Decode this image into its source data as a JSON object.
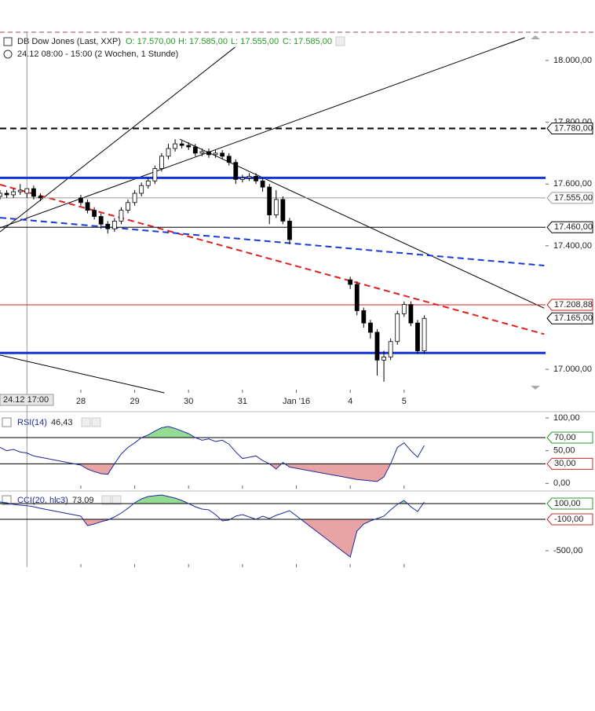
{
  "chart_data": [
    {
      "type": "candlestick",
      "title": "DB Dow Jones (Last, XXP)",
      "ohlc_labels": [
        "O: 17.570,00",
        "H: 17.585,00",
        "L: 17.555,00",
        "C: 17.585,00"
      ],
      "subtitle": "24.12 08:00 - 15:00 (2 Wochen, 1 Stunde)",
      "x": [
        0,
        1,
        2,
        3,
        4,
        5,
        6,
        12,
        13,
        14,
        15,
        16,
        17,
        18,
        19,
        20,
        21,
        22,
        23,
        24,
        25,
        26,
        27,
        28,
        29,
        30,
        31,
        32,
        33,
        34,
        35,
        36,
        37,
        38,
        39,
        40,
        41,
        42,
        43,
        52,
        53,
        54,
        55,
        56,
        57,
        58,
        59,
        60,
        61,
        62,
        63
      ],
      "open": [
        17560,
        17570,
        17565,
        17575,
        17570,
        17585,
        17560,
        17555,
        17540,
        17515,
        17495,
        17470,
        17455,
        17480,
        17515,
        17540,
        17570,
        17595,
        17610,
        17650,
        17690,
        17715,
        17730,
        17725,
        17720,
        17700,
        17705,
        17695,
        17700,
        17690,
        17670,
        17615,
        17620,
        17625,
        17610,
        17590,
        17500,
        17550,
        17480,
        17290,
        17275,
        17190,
        17150,
        17120,
        17030,
        17040,
        17090,
        17180,
        17210,
        17150,
        17060
      ],
      "high": [
        17580,
        17580,
        17585,
        17600,
        17585,
        17595,
        17570,
        17565,
        17550,
        17525,
        17505,
        17480,
        17490,
        17525,
        17550,
        17580,
        17605,
        17620,
        17660,
        17700,
        17730,
        17745,
        17740,
        17735,
        17730,
        17715,
        17715,
        17710,
        17710,
        17700,
        17680,
        17630,
        17635,
        17635,
        17620,
        17600,
        17580,
        17560,
        17490,
        17300,
        17285,
        17200,
        17160,
        17130,
        17060,
        17100,
        17190,
        17220,
        17220,
        17160,
        17175
      ],
      "low": [
        17550,
        17555,
        17555,
        17565,
        17555,
        17550,
        17545,
        17530,
        17505,
        17485,
        17455,
        17440,
        17445,
        17470,
        17505,
        17530,
        17560,
        17585,
        17600,
        17640,
        17680,
        17705,
        17715,
        17710,
        17690,
        17690,
        17685,
        17685,
        17680,
        17660,
        17600,
        17605,
        17610,
        17600,
        17575,
        17470,
        17490,
        17470,
        17405,
        17260,
        17175,
        17135,
        17100,
        16980,
        16960,
        17030,
        17080,
        17170,
        17140,
        17050,
        17050
      ],
      "close": [
        17570,
        17565,
        17575,
        17580,
        17585,
        17560,
        17555,
        17540,
        17515,
        17495,
        17470,
        17455,
        17480,
        17515,
        17540,
        17570,
        17595,
        17610,
        17650,
        17690,
        17715,
        17730,
        17725,
        17720,
        17700,
        17705,
        17695,
        17700,
        17690,
        17670,
        17615,
        17620,
        17625,
        17610,
        17590,
        17500,
        17550,
        17480,
        17420,
        17275,
        17190,
        17150,
        17120,
        17030,
        17040,
        17090,
        17180,
        17210,
        17150,
        17060,
        17165
      ],
      "up_color": "#ffffff",
      "down_color": "#000000",
      "xlim": [
        0,
        81
      ],
      "ylim": [
        16924,
        18094
      ],
      "xticks": [
        {
          "value": 12,
          "label": "28"
        },
        {
          "value": 20,
          "label": "29"
        },
        {
          "value": 28,
          "label": "30"
        },
        {
          "value": 36,
          "label": "31"
        },
        {
          "value": 44,
          "label": "Jan '16"
        },
        {
          "value": 52,
          "label": "4"
        },
        {
          "value": 60,
          "label": "5"
        }
      ],
      "yticks": [
        {
          "value": 18000,
          "label": "18.000,00"
        },
        {
          "value": 17800,
          "label": "17.800,00"
        },
        {
          "value": 17600,
          "label": "17.600,00"
        },
        {
          "value": 17400,
          "label": "17.400,00"
        },
        {
          "value": 17000,
          "label": "17.000,00"
        }
      ],
      "crosshair": {
        "x": 4,
        "label": "24.12 17:00"
      },
      "levels": [
        {
          "value": 17620,
          "color": "#1434d8",
          "style": "solid",
          "width": 3
        },
        {
          "value": 17053,
          "color": "#1434d8",
          "style": "solid",
          "width": 3
        },
        {
          "value": 17780,
          "label": "17.780,00",
          "color": "#000000",
          "style": "dashed",
          "width": 2
        },
        {
          "value": 17555,
          "label": "17.555,00",
          "color": "#999999",
          "style": "solid",
          "width": 1
        },
        {
          "value": 17460,
          "label": "17.460,00",
          "color": "#000000",
          "style": "solid",
          "width": 1
        },
        {
          "value": 17208.88,
          "label": "17.208,88",
          "color": "#d02020",
          "style": "solid",
          "width": 1
        },
        {
          "value": 17165,
          "label": "17.165,00",
          "color": "#000000",
          "style": "none",
          "width": 1
        }
      ],
      "trendlines": [
        {
          "x": [
            0,
            34.9
          ],
          "y": [
            17445,
            18043
          ],
          "color": "#000000",
          "style": "solid",
          "width": 1
        },
        {
          "x": [
            0,
            77.9
          ],
          "y": [
            17458,
            18074
          ],
          "color": "#000000",
          "style": "solid",
          "width": 1
        },
        {
          "x": [
            26.7,
            80.8
          ],
          "y": [
            17745,
            17198
          ],
          "color": "#000000",
          "style": "solid",
          "width": 1
        },
        {
          "x": [
            0,
            24.4
          ],
          "y": [
            17046,
            16924
          ],
          "color": "#000000",
          "style": "solid",
          "width": 1
        },
        {
          "x": [
            0,
            80.8
          ],
          "y": [
            17598,
            17114
          ],
          "color": "#e02020",
          "style": "dashed",
          "width": 2
        },
        {
          "x": [
            0,
            80.8
          ],
          "y": [
            17491,
            17336
          ],
          "color": "#1a3ad8",
          "style": "dashed",
          "width": 2
        }
      ]
    },
    {
      "type": "line",
      "title": "RSI(14)",
      "current_label": "46,43",
      "color": "#1c2a9c",
      "values": [
        55,
        50,
        52,
        48,
        46.43,
        42,
        40,
        28,
        22,
        18,
        15,
        14,
        30,
        45,
        55,
        62,
        70,
        74,
        80,
        85,
        87,
        84,
        80,
        76,
        70,
        66,
        68,
        64,
        66,
        60,
        48,
        38,
        40,
        42,
        35,
        30,
        22,
        32,
        25,
        8,
        6,
        5,
        4,
        3,
        10,
        30,
        55,
        62,
        50,
        40,
        58
      ],
      "ylim": [
        -8,
        106
      ],
      "yticks": [
        {
          "value": 100,
          "label": "100,00"
        },
        {
          "value": 50,
          "label": "50,00"
        },
        {
          "value": 0,
          "label": "0,00"
        }
      ],
      "levels": [
        {
          "value": 70,
          "label": "70,00",
          "color": "#2a9a2a",
          "fill": "#94dc94"
        },
        {
          "value": 30,
          "label": "30,00",
          "color": "#cc2a2a",
          "fill": "#e8a4a4"
        }
      ]
    },
    {
      "type": "line",
      "title": "CCI(20, hlc3)",
      "current_label": "73,09",
      "color": "#1c2a9c",
      "values": [
        120,
        110,
        90,
        80,
        73.09,
        60,
        40,
        -60,
        -180,
        -160,
        -130,
        -110,
        -70,
        -20,
        40,
        110,
        160,
        190,
        200,
        210,
        190,
        170,
        140,
        100,
        60,
        30,
        20,
        -40,
        -120,
        -110,
        -60,
        -40,
        -70,
        -100,
        -60,
        -90,
        -50,
        -20,
        10,
        -580,
        -250,
        -160,
        -120,
        -90,
        -60,
        20,
        90,
        140,
        60,
        0,
        120
      ],
      "ylim": [
        -710,
        240
      ],
      "yticks": [
        {
          "value": -500,
          "label": "-500,00"
        }
      ],
      "levels": [
        {
          "value": 100,
          "label": "100,00",
          "color": "#2a9a2a",
          "fill": "#94dc94"
        },
        {
          "value": -100,
          "label": "-100,00",
          "color": "#cc2a2a",
          "fill": "#e8a4a4"
        }
      ]
    }
  ]
}
